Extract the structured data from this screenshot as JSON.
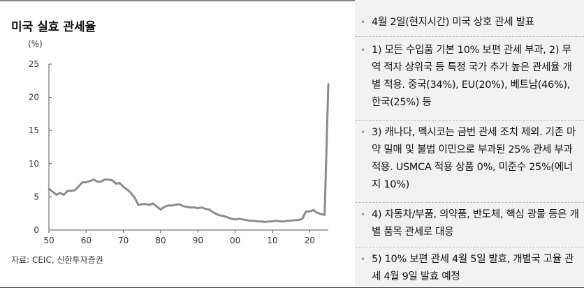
{
  "chart_title": "미국 실효 관세율",
  "unit": "(%)",
  "source": "자료: CEIC, 신한투자증권",
  "chart_data": {
    "type": "line",
    "title": "미국 실효 관세율",
    "ylabel": "(%)",
    "xlabel": "",
    "ylim": [
      0,
      25
    ],
    "y_ticks": [
      "0",
      "5",
      "10",
      "15",
      "20",
      "25"
    ],
    "x_ticks": [
      "50",
      "60",
      "70",
      "80",
      "90",
      "00",
      "10",
      "20"
    ],
    "grid": false,
    "color": "#8c8c8c",
    "series": [
      {
        "x": [
          1950,
          1951,
          1952,
          1953,
          1954,
          1955,
          1956,
          1957,
          1958,
          1959,
          1960,
          1961,
          1962,
          1963,
          1964,
          1965,
          1966,
          1967,
          1968,
          1969,
          1970,
          1971,
          1972,
          1973,
          1974,
          1975,
          1976,
          1977,
          1978,
          1979,
          1980,
          1981,
          1982,
          1983,
          1984,
          1985,
          1986,
          1987,
          1988,
          1989,
          1990,
          1991,
          1992,
          1993,
          1994,
          1995,
          1996,
          1997,
          1998,
          1999,
          2000,
          2001,
          2002,
          2003,
          2004,
          2005,
          2006,
          2007,
          2008,
          2009,
          2010,
          2011,
          2012,
          2013,
          2014,
          2015,
          2016,
          2017,
          2018,
          2019,
          2020,
          2021,
          2022,
          2023,
          2024,
          2025
        ],
        "y": [
          6.2,
          5.8,
          5.3,
          5.6,
          5.3,
          5.9,
          5.9,
          6.0,
          6.6,
          7.2,
          7.2,
          7.4,
          7.6,
          7.3,
          7.3,
          7.6,
          7.6,
          7.5,
          7.0,
          7.1,
          6.5,
          6.1,
          5.6,
          4.9,
          3.8,
          3.9,
          3.9,
          3.8,
          4.0,
          3.5,
          3.1,
          3.5,
          3.7,
          3.7,
          3.8,
          3.9,
          3.6,
          3.5,
          3.4,
          3.4,
          3.3,
          3.4,
          3.2,
          3.1,
          2.7,
          2.4,
          2.2,
          2.1,
          1.9,
          1.7,
          1.6,
          1.7,
          1.6,
          1.5,
          1.4,
          1.4,
          1.3,
          1.3,
          1.2,
          1.3,
          1.3,
          1.4,
          1.3,
          1.3,
          1.4,
          1.4,
          1.5,
          1.5,
          1.7,
          2.8,
          2.8,
          3.0,
          2.6,
          2.4,
          2.3,
          22.0
        ]
      }
    ]
  },
  "bullets": [
    "4월 2일(현지시간) 미국 상호 관세 발표",
    "1) 모든 수입품 기본 10% 보편 관세 부과, 2) 무역 적자 상위국 등 특정 국가 추가 높은 관세율 개별 적용. 중국(34%), EU(20%), 베트남(46%), 한국(25%) 등",
    "3) 캐나다, 멕시코는 금번 관세 조치 제외. 기존 마약 밀매 및 불법 이민으로 부과된 25% 관세 부과 적용. USMCA 적용 상품 0%, 미준수 25%(에너지 10%)",
    "4) 자동차/부품, 의약품, 반도체, 핵심 광물 등은 개별 품목 관세로 대응",
    "5) 10% 보편 관세 4월 5일 발효, 개별국 고율 관세 4월 9일 발효 예정"
  ],
  "bullet_marker": "•",
  "panel_bg": "#f2f2f2"
}
